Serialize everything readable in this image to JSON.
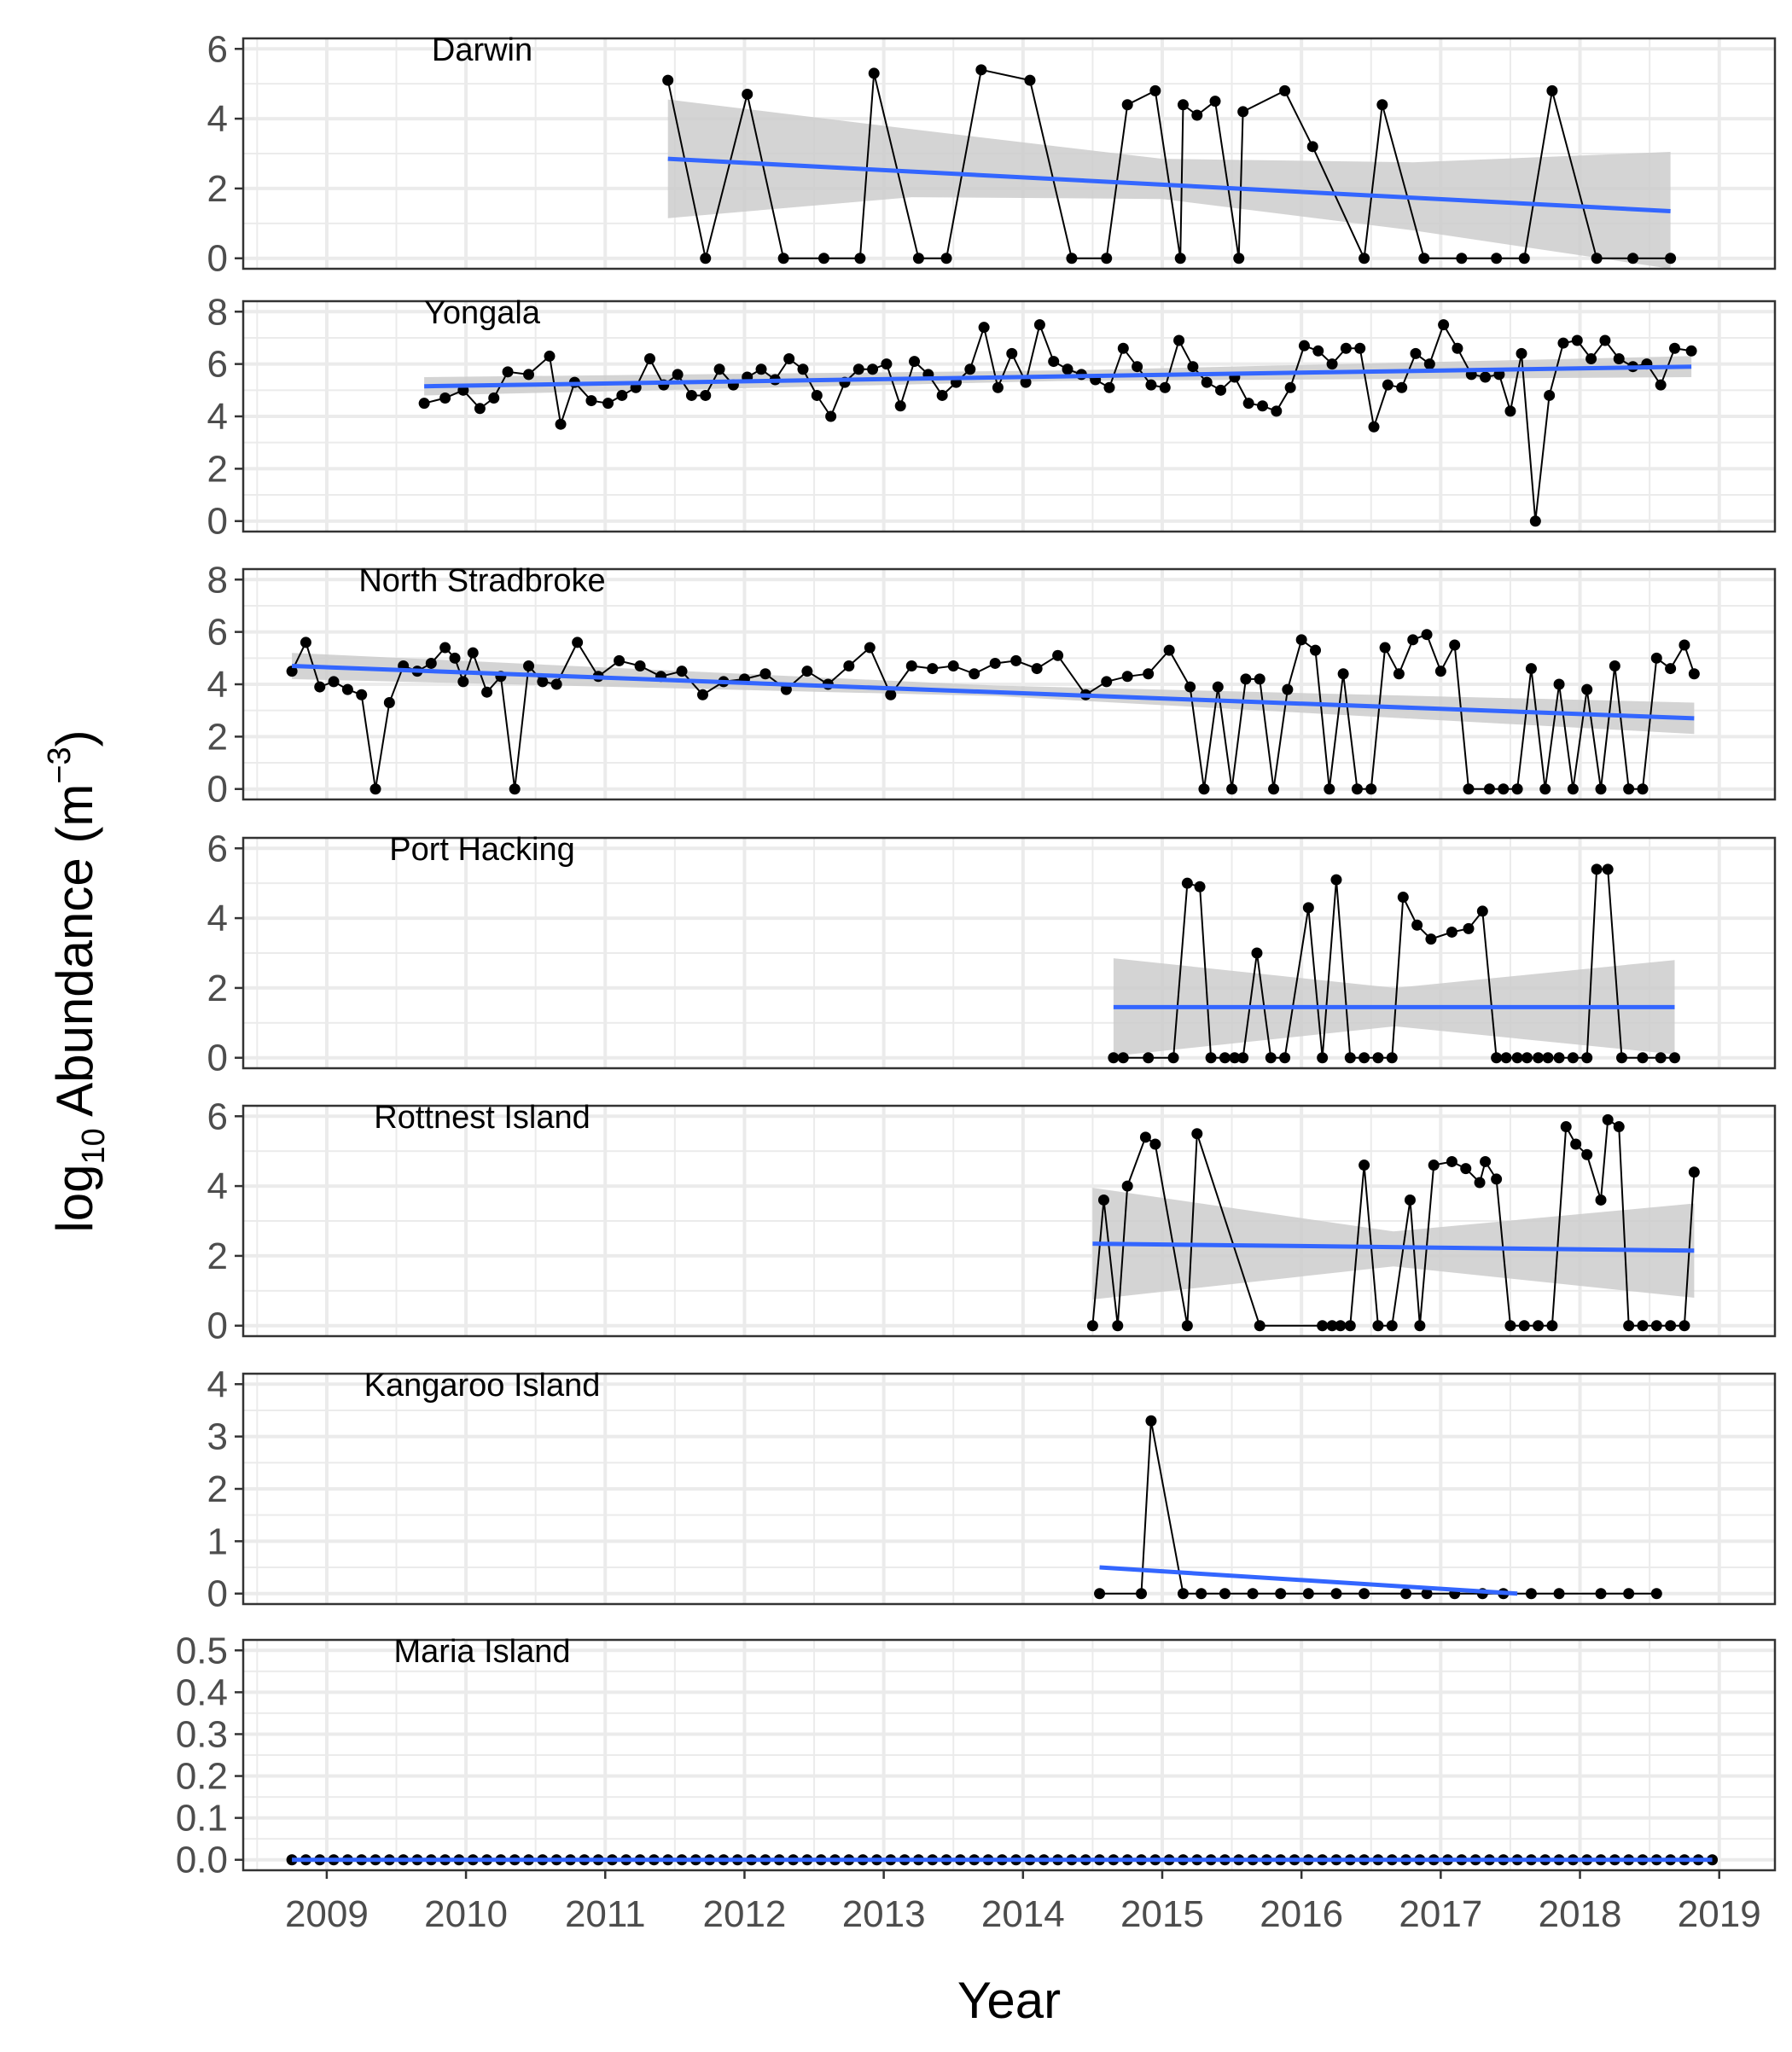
{
  "chart_data": {
    "type": "line",
    "layout": "stacked facets, shared x-axis",
    "xlabel": "Year",
    "ylabel_main": "log",
    "ylabel_sub": "10",
    "ylabel_rest": " Abundance (m",
    "ylabel_sup": "−3",
    "ylabel_close": ")",
    "xlim": [
      2008.4,
      2019.4
    ],
    "x_ticks": [
      2009,
      2010,
      2011,
      2012,
      2013,
      2014,
      2015,
      2016,
      2017,
      2018,
      2019
    ],
    "x_tick_labels": [
      "2009",
      "2010",
      "2011",
      "2012",
      "2013",
      "2014",
      "2015",
      "2016",
      "2017",
      "2018",
      "2019"
    ],
    "grid": true,
    "trend": "linear fit with confidence band",
    "colors": {
      "series_line": "#000000",
      "series_points": "#000000",
      "trend_line": "#3366ff",
      "confidence_band": "#cccccc",
      "grid": "#ebebeb",
      "panel_border": "#333333"
    },
    "panels": [
      {
        "name": "Darwin",
        "ylim": [
          -0.3,
          6.3
        ],
        "y_ticks": [
          0,
          2,
          4,
          6
        ],
        "y_tick_labels": [
          "0",
          "2",
          "4",
          "6"
        ],
        "x": [
          2011.45,
          2011.72,
          2012.02,
          2012.28,
          2012.57,
          2012.83,
          2012.93,
          2013.25,
          2013.45,
          2013.7,
          2014.05,
          2014.35,
          2014.6,
          2014.75,
          2014.95,
          2015.13,
          2015.15,
          2015.25,
          2015.38,
          2015.55,
          2015.58,
          2015.88,
          2016.08,
          2016.45,
          2016.58,
          2016.88,
          2017.15,
          2017.4,
          2017.6,
          2017.8,
          2018.12,
          2018.38,
          2018.65
        ],
        "y": [
          5.1,
          0.0,
          4.7,
          0.0,
          0.0,
          0.0,
          5.3,
          0.0,
          0.0,
          5.4,
          5.1,
          0.0,
          0.0,
          4.4,
          4.8,
          0.0,
          4.4,
          4.1,
          4.5,
          0.0,
          4.2,
          4.8,
          3.2,
          0.0,
          4.4,
          0.0,
          0.0,
          0.0,
          0.0,
          4.8,
          0.0,
          0.0,
          0.0
        ],
        "trend": {
          "x": [
            2011.45,
            2018.65
          ],
          "y": [
            2.85,
            1.35
          ]
        },
        "band": {
          "x": [
            2011.45,
            2013.2,
            2015.0,
            2016.8,
            2018.65
          ],
          "lower": [
            1.15,
            1.75,
            1.7,
            0.8,
            -0.3
          ],
          "upper": [
            4.55,
            3.7,
            2.85,
            2.75,
            3.05
          ]
        }
      },
      {
        "name": "Yongala",
        "ylim": [
          -0.4,
          8.4
        ],
        "y_ticks": [
          0,
          2,
          4,
          6,
          8
        ],
        "y_tick_labels": [
          "0",
          "2",
          "4",
          "6",
          "8"
        ],
        "x": [
          2009.7,
          2009.85,
          2009.98,
          2010.1,
          2010.2,
          2010.3,
          2010.45,
          2010.6,
          2010.68,
          2010.78,
          2010.9,
          2011.02,
          2011.12,
          2011.22,
          2011.32,
          2011.42,
          2011.52,
          2011.62,
          2011.72,
          2011.82,
          2011.92,
          2012.02,
          2012.12,
          2012.22,
          2012.32,
          2012.42,
          2012.52,
          2012.62,
          2012.72,
          2012.82,
          2012.92,
          2013.02,
          2013.12,
          2013.22,
          2013.32,
          2013.42,
          2013.52,
          2013.62,
          2013.72,
          2013.82,
          2013.92,
          2014.02,
          2014.12,
          2014.22,
          2014.32,
          2014.42,
          2014.52,
          2014.62,
          2014.72,
          2014.82,
          2014.92,
          2015.02,
          2015.12,
          2015.22,
          2015.32,
          2015.42,
          2015.52,
          2015.62,
          2015.72,
          2015.82,
          2015.92,
          2016.02,
          2016.12,
          2016.22,
          2016.32,
          2016.42,
          2016.52,
          2016.62,
          2016.72,
          2016.82,
          2016.92,
          2017.02,
          2017.12,
          2017.22,
          2017.32,
          2017.42,
          2017.5,
          2017.58,
          2017.68,
          2017.78,
          2017.88,
          2017.98,
          2018.08,
          2018.18,
          2018.28,
          2018.38,
          2018.48,
          2018.58,
          2018.68,
          2018.8
        ],
        "y": [
          4.5,
          4.7,
          5.0,
          4.3,
          4.7,
          5.7,
          5.6,
          6.3,
          3.7,
          5.3,
          4.6,
          4.5,
          4.8,
          5.1,
          6.2,
          5.2,
          5.6,
          4.8,
          4.8,
          5.8,
          5.2,
          5.5,
          5.8,
          5.4,
          6.2,
          5.8,
          4.8,
          4.0,
          5.3,
          5.8,
          5.8,
          6.0,
          4.4,
          6.1,
          5.6,
          4.8,
          5.3,
          5.8,
          7.4,
          5.1,
          6.4,
          5.3,
          7.5,
          6.1,
          5.8,
          5.6,
          5.4,
          5.1,
          6.6,
          5.9,
          5.2,
          5.1,
          6.9,
          5.9,
          5.3,
          5.0,
          5.5,
          4.5,
          4.4,
          4.2,
          5.1,
          6.7,
          6.5,
          6.0,
          6.6,
          6.6,
          3.6,
          5.2,
          5.1,
          6.4,
          6.0,
          7.5,
          6.6,
          5.6,
          5.5,
          5.6,
          4.2,
          6.4,
          0.0,
          4.8,
          6.8,
          6.9,
          6.2,
          6.9,
          6.2,
          5.9,
          6.0,
          5.2,
          6.6,
          6.5
        ],
        "trend": {
          "x": [
            2009.7,
            2018.8
          ],
          "y": [
            5.15,
            5.9
          ]
        },
        "band": {
          "x": [
            2009.7,
            2014.25,
            2018.8
          ],
          "lower": [
            4.8,
            5.35,
            5.5
          ],
          "upper": [
            5.5,
            5.75,
            6.3
          ]
        }
      },
      {
        "name": "North Stradbroke",
        "ylim": [
          -0.4,
          8.4
        ],
        "y_ticks": [
          0,
          2,
          4,
          6,
          8
        ],
        "y_tick_labels": [
          "0",
          "2",
          "4",
          "6",
          "8"
        ],
        "x": [
          2008.75,
          2008.85,
          2008.95,
          2009.05,
          2009.15,
          2009.25,
          2009.35,
          2009.45,
          2009.55,
          2009.65,
          2009.75,
          2009.85,
          2009.92,
          2009.98,
          2010.05,
          2010.15,
          2010.25,
          2010.35,
          2010.45,
          2010.55,
          2010.65,
          2010.8,
          2010.95,
          2011.1,
          2011.25,
          2011.4,
          2011.55,
          2011.7,
          2011.85,
          2012.0,
          2012.15,
          2012.3,
          2012.45,
          2012.6,
          2012.75,
          2012.9,
          2013.05,
          2013.2,
          2013.35,
          2013.5,
          2013.65,
          2013.8,
          2013.95,
          2014.1,
          2014.25,
          2014.45,
          2014.6,
          2014.75,
          2014.9,
          2015.05,
          2015.2,
          2015.3,
          2015.4,
          2015.5,
          2015.6,
          2015.7,
          2015.8,
          2015.9,
          2016.0,
          2016.1,
          2016.2,
          2016.3,
          2016.4,
          2016.5,
          2016.6,
          2016.7,
          2016.8,
          2016.9,
          2017.0,
          2017.1,
          2017.2,
          2017.35,
          2017.45,
          2017.55,
          2017.65,
          2017.75,
          2017.85,
          2017.95,
          2018.05,
          2018.15,
          2018.25,
          2018.35,
          2018.45,
          2018.55,
          2018.65,
          2018.75,
          2018.82
        ],
        "y": [
          4.5,
          5.6,
          3.9,
          4.1,
          3.8,
          3.6,
          0.0,
          3.3,
          4.7,
          4.5,
          4.8,
          5.4,
          5.0,
          4.1,
          5.2,
          3.7,
          4.3,
          0.0,
          4.7,
          4.1,
          4.0,
          5.6,
          4.3,
          4.9,
          4.7,
          4.3,
          4.5,
          3.6,
          4.1,
          4.2,
          4.4,
          3.8,
          4.5,
          4.0,
          4.7,
          5.4,
          3.6,
          4.7,
          4.6,
          4.7,
          4.4,
          4.8,
          4.9,
          4.6,
          5.1,
          3.6,
          4.1,
          4.3,
          4.4,
          5.3,
          3.9,
          0.0,
          3.9,
          0.0,
          4.2,
          4.2,
          0.0,
          3.8,
          5.7,
          5.3,
          0.0,
          4.4,
          0.0,
          0.0,
          5.4,
          4.4,
          5.7,
          5.9,
          4.5,
          5.5,
          0.0,
          0.0,
          0.0,
          0.0,
          4.6,
          0.0,
          4.0,
          0.0,
          3.8,
          0.0,
          4.7,
          0.0,
          0.0,
          5.0,
          4.6,
          5.5,
          4.4
        ],
        "trend": {
          "x": [
            2008.75,
            2018.82
          ],
          "y": [
            4.7,
            2.7
          ]
        },
        "band": {
          "x": [
            2008.75,
            2013.8,
            2018.82
          ],
          "lower": [
            4.2,
            3.55,
            2.1
          ],
          "upper": [
            5.2,
            3.95,
            3.3
          ]
        }
      },
      {
        "name": "Port Hacking",
        "ylim": [
          -0.3,
          6.3
        ],
        "y_ticks": [
          0,
          2,
          4,
          6
        ],
        "y_tick_labels": [
          "0",
          "2",
          "4",
          "6"
        ],
        "x": [
          2014.65,
          2014.72,
          2014.9,
          2015.08,
          2015.18,
          2015.27,
          2015.35,
          2015.45,
          2015.52,
          2015.58,
          2015.68,
          2015.78,
          2015.88,
          2016.05,
          2016.15,
          2016.25,
          2016.35,
          2016.45,
          2016.55,
          2016.65,
          2016.73,
          2016.83,
          2016.93,
          2017.08,
          2017.2,
          2017.3,
          2017.4,
          2017.47,
          2017.55,
          2017.62,
          2017.7,
          2017.77,
          2017.85,
          2017.95,
          2018.05,
          2018.12,
          2018.2,
          2018.3,
          2018.45,
          2018.58,
          2018.68
        ],
        "y": [
          0.0,
          0.0,
          0.0,
          0.0,
          5.0,
          4.9,
          0.0,
          0.0,
          0.0,
          0.0,
          3.0,
          0.0,
          0.0,
          4.3,
          0.0,
          5.1,
          0.0,
          0.0,
          0.0,
          0.0,
          4.6,
          3.8,
          3.4,
          3.6,
          3.7,
          4.2,
          0.0,
          0.0,
          0.0,
          0.0,
          0.0,
          0.0,
          0.0,
          0.0,
          0.0,
          5.4,
          5.4,
          0.0,
          0.0,
          0.0,
          0.0
        ],
        "trend": {
          "x": [
            2014.65,
            2018.68
          ],
          "y": [
            1.45,
            1.45
          ]
        },
        "band": {
          "x": [
            2014.65,
            2016.67,
            2018.68
          ],
          "lower": [
            0.05,
            0.9,
            0.1
          ],
          "upper": [
            2.85,
            2.0,
            2.8
          ]
        }
      },
      {
        "name": "Rottnest Island",
        "ylim": [
          -0.3,
          6.3
        ],
        "y_ticks": [
          0,
          2,
          4,
          6
        ],
        "y_tick_labels": [
          "0",
          "2",
          "4",
          "6"
        ],
        "x": [
          2014.5,
          2014.58,
          2014.68,
          2014.75,
          2014.88,
          2014.95,
          2015.18,
          2015.25,
          2015.7,
          2016.15,
          2016.22,
          2016.28,
          2016.35,
          2016.45,
          2016.55,
          2016.65,
          2016.78,
          2016.85,
          2016.95,
          2017.08,
          2017.18,
          2017.28,
          2017.32,
          2017.4,
          2017.5,
          2017.6,
          2017.7,
          2017.8,
          2017.9,
          2017.97,
          2018.05,
          2018.15,
          2018.2,
          2018.28,
          2018.35,
          2018.45,
          2018.55,
          2018.65,
          2018.75,
          2018.82
        ],
        "y": [
          0.0,
          3.6,
          0.0,
          4.0,
          5.4,
          5.2,
          0.0,
          5.5,
          0.0,
          0.0,
          0.0,
          0.0,
          0.0,
          4.6,
          0.0,
          0.0,
          3.6,
          0.0,
          4.6,
          4.7,
          4.5,
          4.1,
          4.7,
          4.2,
          0.0,
          0.0,
          0.0,
          0.0,
          5.7,
          5.2,
          4.9,
          3.6,
          5.9,
          5.7,
          0.0,
          0.0,
          0.0,
          0.0,
          0.0,
          4.4
        ],
        "trend": {
          "x": [
            2014.5,
            2018.82
          ],
          "y": [
            2.35,
            2.15
          ]
        },
        "band": {
          "x": [
            2014.5,
            2016.66,
            2018.82
          ],
          "lower": [
            0.75,
            1.7,
            0.8
          ],
          "upper": [
            3.95,
            2.7,
            3.5
          ]
        }
      },
      {
        "name": "Kangaroo Island",
        "ylim": [
          -0.2,
          4.2
        ],
        "y_ticks": [
          0,
          1,
          2,
          3,
          4
        ],
        "y_tick_labels": [
          "0",
          "1",
          "2",
          "3",
          "4"
        ],
        "x": [
          2014.55,
          2014.85,
          2014.92,
          2015.15,
          2015.28,
          2015.45,
          2015.65,
          2015.85,
          2016.05,
          2016.25,
          2016.45,
          2016.75,
          2016.9,
          2017.1,
          2017.3,
          2017.45,
          2017.65,
          2017.85,
          2018.15,
          2018.35,
          2018.55
        ],
        "y": [
          0.0,
          0.0,
          3.3,
          0.0,
          0.0,
          0.0,
          0.0,
          0.0,
          0.0,
          0.0,
          0.0,
          0.0,
          0.0,
          0.0,
          0.0,
          0.0,
          0.0,
          0.0,
          0.0,
          0.0,
          0.0
        ],
        "trend": {
          "x": [
            2014.55,
            2017.55
          ],
          "y": [
            0.5,
            0.0
          ]
        }
      },
      {
        "name": "Maria Island",
        "ylim": [
          -0.025,
          0.525
        ],
        "y_ticks": [
          0,
          0.1,
          0.2,
          0.3,
          0.4,
          0.5
        ],
        "y_tick_labels": [
          "0.0",
          "0.1",
          "0.2",
          "0.3",
          "0.4",
          "0.5"
        ],
        "x": [
          2008.75,
          2008.85,
          2008.95,
          2009.05,
          2009.15,
          2009.25,
          2009.35,
          2009.45,
          2009.55,
          2009.65,
          2009.75,
          2009.85,
          2009.95,
          2010.05,
          2010.15,
          2010.25,
          2010.35,
          2010.45,
          2010.55,
          2010.65,
          2010.75,
          2010.85,
          2010.95,
          2011.05,
          2011.15,
          2011.25,
          2011.35,
          2011.45,
          2011.55,
          2011.65,
          2011.75,
          2011.85,
          2011.95,
          2012.05,
          2012.15,
          2012.25,
          2012.35,
          2012.45,
          2012.55,
          2012.65,
          2012.75,
          2012.85,
          2012.95,
          2013.05,
          2013.15,
          2013.25,
          2013.35,
          2013.45,
          2013.55,
          2013.65,
          2013.75,
          2013.85,
          2013.95,
          2014.05,
          2014.15,
          2014.25,
          2014.35,
          2014.45,
          2014.55,
          2014.65,
          2014.75,
          2014.85,
          2014.95,
          2015.05,
          2015.15,
          2015.25,
          2015.35,
          2015.45,
          2015.55,
          2015.65,
          2015.75,
          2015.85,
          2015.95,
          2016.05,
          2016.15,
          2016.25,
          2016.35,
          2016.45,
          2016.55,
          2016.65,
          2016.75,
          2016.85,
          2016.95,
          2017.05,
          2017.15,
          2017.25,
          2017.35,
          2017.45,
          2017.55,
          2017.65,
          2017.75,
          2017.85,
          2017.95,
          2018.05,
          2018.15,
          2018.25,
          2018.35,
          2018.45,
          2018.55,
          2018.65,
          2018.75,
          2018.85,
          2018.95
        ],
        "y": [
          0,
          0,
          0,
          0,
          0,
          0,
          0,
          0,
          0,
          0,
          0,
          0,
          0,
          0,
          0,
          0,
          0,
          0,
          0,
          0,
          0,
          0,
          0,
          0,
          0,
          0,
          0,
          0,
          0,
          0,
          0,
          0,
          0,
          0,
          0,
          0,
          0,
          0,
          0,
          0,
          0,
          0,
          0,
          0,
          0,
          0,
          0,
          0,
          0,
          0,
          0,
          0,
          0,
          0,
          0,
          0,
          0,
          0,
          0,
          0,
          0,
          0,
          0,
          0,
          0,
          0,
          0,
          0,
          0,
          0,
          0,
          0,
          0,
          0,
          0,
          0,
          0,
          0,
          0,
          0,
          0,
          0,
          0,
          0,
          0,
          0,
          0,
          0,
          0,
          0,
          0,
          0,
          0,
          0,
          0,
          0,
          0,
          0,
          0,
          0,
          0,
          0,
          0
        ],
        "trend": {
          "x": [
            2008.75,
            2018.95
          ],
          "y": [
            0.0,
            0.0
          ]
        }
      }
    ]
  }
}
